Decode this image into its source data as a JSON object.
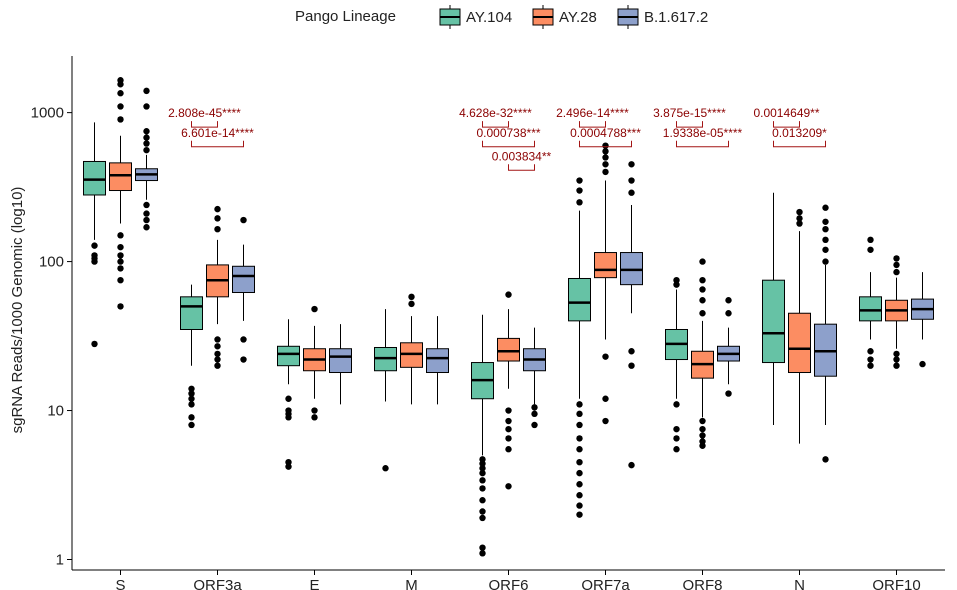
{
  "chart_data": {
    "type": "box",
    "title": "",
    "xlabel": "",
    "ylabel": "sgRNA Reads/1000 Genomic (log10)",
    "yscale": "log10",
    "ylim": [
      0.85,
      2400
    ],
    "yticks": [
      1,
      10,
      100,
      1000
    ],
    "ytick_labels": [
      "1",
      "10",
      "100",
      "1000"
    ],
    "legend": {
      "title": "Pango Lineage",
      "position": "top",
      "entries": [
        "AY.104",
        "AY.28",
        "B.1.617.2"
      ]
    },
    "colors": {
      "AY.104": "#66c2a5",
      "AY.28": "#fc8d62",
      "B.1.617.2": "#8da0cb"
    },
    "categories": [
      "S",
      "ORF3a",
      "E",
      "M",
      "ORF6",
      "ORF7a",
      "ORF8",
      "N",
      "ORF10"
    ],
    "series": [
      {
        "name": "AY.104",
        "boxes": [
          {
            "min": 140,
            "q1": 280,
            "median": 355,
            "q3": 470,
            "max": 860,
            "outliers": [
              28,
              100,
              105,
              110,
              128
            ]
          },
          {
            "min": 20,
            "q1": 35,
            "median": 50,
            "q3": 58,
            "max": 70,
            "outliers": [
              8,
              9,
              11,
              12,
              13,
              14
            ]
          },
          {
            "min": 15,
            "q1": 20,
            "median": 24,
            "q3": 27,
            "max": 41,
            "outliers": [
              4.2,
              4.5,
              9,
              9.5,
              10,
              12
            ]
          },
          {
            "min": 11.5,
            "q1": 18.5,
            "median": 22.5,
            "q3": 26.5,
            "max": 48,
            "outliers": [
              4.1
            ]
          },
          {
            "min": 5,
            "q1": 12,
            "median": 16,
            "q3": 21,
            "max": 44,
            "outliers": [
              1.1,
              1.2,
              1.9,
              2.1,
              2.5,
              3,
              3.4,
              3.8,
              4.1,
              4.4,
              4.7
            ]
          },
          {
            "min": 12,
            "q1": 40,
            "median": 53,
            "q3": 77,
            "max": 220,
            "outliers": [
              2,
              2.3,
              2.7,
              3.2,
              3.8,
              4.5,
              5.5,
              6.5,
              8,
              9.5,
              11,
              250,
              300,
              350
            ]
          },
          {
            "min": 12,
            "q1": 22,
            "median": 28,
            "q3": 35,
            "max": 65,
            "outliers": [
              5.5,
              6.5,
              7.5,
              11,
              70,
              75
            ]
          },
          {
            "min": 8,
            "q1": 21,
            "median": 33,
            "q3": 75,
            "max": 290,
            "outliers": []
          },
          {
            "min": 30,
            "q1": 40,
            "median": 47,
            "q3": 58,
            "max": 85,
            "outliers": [
              20,
              22,
              25,
              120,
              140
            ]
          }
        ]
      },
      {
        "name": "AY.28",
        "boxes": [
          {
            "min": 180,
            "q1": 300,
            "median": 380,
            "q3": 460,
            "max": 700,
            "outliers": [
              50,
              75,
              90,
              100,
              110,
              125,
              150,
              900,
              1100,
              1350,
              1550,
              1650
            ]
          },
          {
            "min": 38,
            "q1": 58,
            "median": 75,
            "q3": 95,
            "max": 140,
            "outliers": [
              20,
              22,
              24,
              27,
              30,
              165,
              195,
              225
            ]
          },
          {
            "min": 12,
            "q1": 18.5,
            "median": 22,
            "q3": 26,
            "max": 37,
            "outliers": [
              9,
              10,
              48
            ]
          },
          {
            "min": 11,
            "q1": 19.5,
            "median": 24,
            "q3": 28.5,
            "max": 43,
            "outliers": [
              52,
              58
            ]
          },
          {
            "min": 14,
            "q1": 21.5,
            "median": 25,
            "q3": 30.5,
            "max": 48,
            "outliers": [
              3.1,
              5.5,
              6.5,
              7.5,
              8.5,
              10,
              60
            ]
          },
          {
            "min": 30,
            "q1": 78,
            "median": 88,
            "q3": 115,
            "max": 350,
            "outliers": [
              8.5,
              12,
              23,
              400,
              450,
              500,
              550,
              600
            ]
          },
          {
            "min": 9,
            "q1": 16.5,
            "median": 20.5,
            "q3": 25,
            "max": 40,
            "outliers": [
              5.8,
              6.2,
              6.8,
              7.5,
              8.5,
              45,
              55,
              65,
              75,
              100
            ]
          },
          {
            "min": 6,
            "q1": 18,
            "median": 26,
            "q3": 45,
            "max": 160,
            "outliers": [
              180,
              195,
              215
            ]
          },
          {
            "min": 26,
            "q1": 40,
            "median": 47,
            "q3": 55,
            "max": 78,
            "outliers": [
              20,
              22,
              24,
              85,
              95,
              105
            ]
          }
        ]
      },
      {
        "name": "B.1.617.2",
        "boxes": [
          {
            "min": 260,
            "q1": 350,
            "median": 385,
            "q3": 420,
            "max": 520,
            "outliers": [
              170,
              190,
              210,
              240,
              560,
              620,
              680,
              750,
              1100,
              1400
            ]
          },
          {
            "min": 40,
            "q1": 62,
            "median": 80,
            "q3": 93,
            "max": 130,
            "outliers": [
              22,
              30,
              190
            ]
          },
          {
            "min": 11,
            "q1": 18,
            "median": 23,
            "q3": 26,
            "max": 38,
            "outliers": []
          },
          {
            "min": 11,
            "q1": 18,
            "median": 22.5,
            "q3": 26,
            "max": 43,
            "outliers": []
          },
          {
            "min": 11,
            "q1": 18.5,
            "median": 22,
            "q3": 26,
            "max": 36,
            "outliers": [
              8,
              9.5,
              10.5
            ]
          },
          {
            "min": 45,
            "q1": 70,
            "median": 88,
            "q3": 115,
            "max": 240,
            "outliers": [
              4.3,
              20,
              25,
              290,
              350,
              450
            ]
          },
          {
            "min": 15,
            "q1": 21.5,
            "median": 24,
            "q3": 27,
            "max": 36,
            "outliers": [
              13,
              45,
              55
            ]
          },
          {
            "min": 8,
            "q1": 17,
            "median": 25,
            "q3": 38,
            "max": 95,
            "outliers": [
              4.7,
              100,
              120,
              140,
              165,
              185,
              230
            ]
          },
          {
            "min": 30,
            "q1": 41,
            "median": 48,
            "q3": 56,
            "max": 85,
            "outliers": [
              20.5
            ]
          }
        ]
      }
    ],
    "annotations": [
      {
        "category": "ORF3a",
        "from": "AY.104",
        "to": "AY.28",
        "y": 800,
        "label": "2.808e-45****"
      },
      {
        "category": "ORF3a",
        "from": "AY.104",
        "to": "B.1.617.2",
        "y": 590,
        "label": "6.601e-14****"
      },
      {
        "category": "ORF6",
        "from": "AY.104",
        "to": "AY.28",
        "y": 800,
        "label": "4.628e-32****"
      },
      {
        "category": "ORF6",
        "from": "AY.104",
        "to": "B.1.617.2",
        "y": 590,
        "label": "0.000738***"
      },
      {
        "category": "ORF6",
        "from": "AY.28",
        "to": "B.1.617.2",
        "y": 410,
        "label": "0.003834**"
      },
      {
        "category": "ORF7a",
        "from": "AY.104",
        "to": "AY.28",
        "y": 800,
        "label": "2.496e-14****"
      },
      {
        "category": "ORF7a",
        "from": "AY.104",
        "to": "B.1.617.2",
        "y": 590,
        "label": "0.0004788***"
      },
      {
        "category": "ORF8",
        "from": "AY.104",
        "to": "AY.28",
        "y": 800,
        "label": "3.875e-15****"
      },
      {
        "category": "ORF8",
        "from": "AY.104",
        "to": "B.1.617.2",
        "y": 590,
        "label": "1.9338e-05****"
      },
      {
        "category": "N",
        "from": "AY.104",
        "to": "AY.28",
        "y": 800,
        "label": "0.0014649**"
      },
      {
        "category": "N",
        "from": "AY.104",
        "to": "B.1.617.2",
        "y": 590,
        "label": "0.013209*"
      }
    ]
  }
}
